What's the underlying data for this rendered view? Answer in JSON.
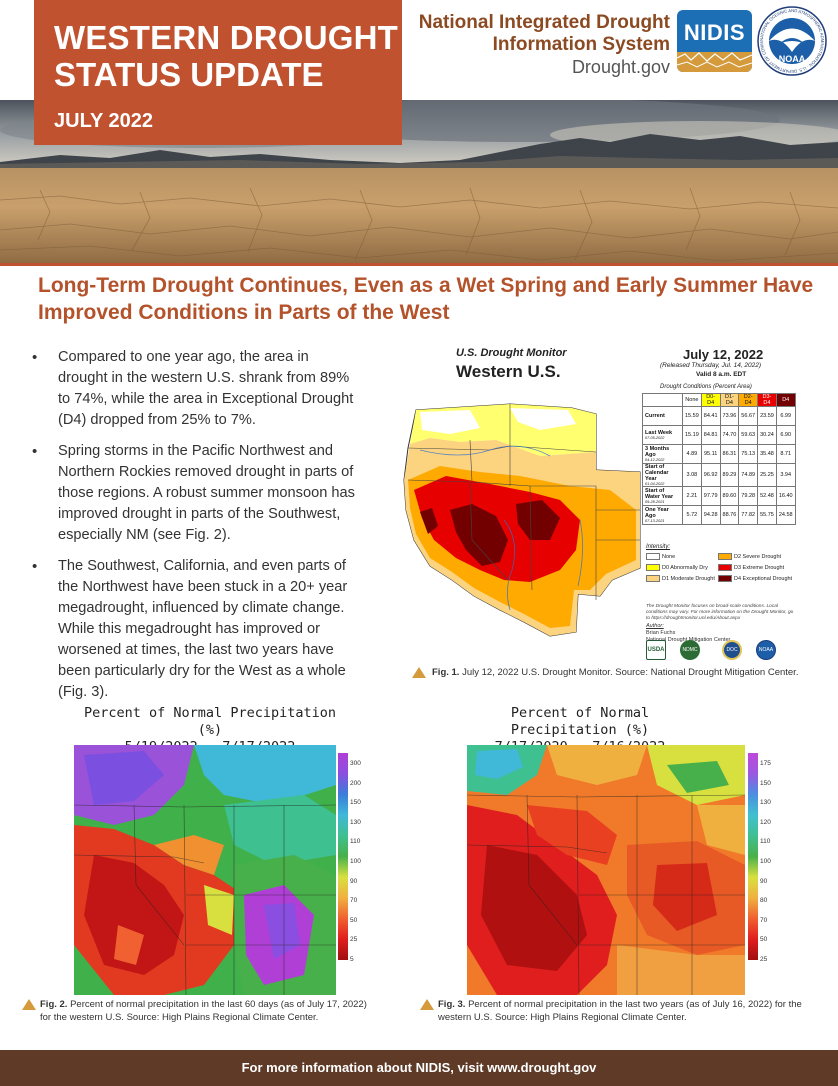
{
  "header": {
    "title_line1": "WESTERN DROUGHT",
    "title_line2": "STATUS UPDATE",
    "date": "JULY 2022",
    "org_line1": "National Integrated Drought",
    "org_line2": "Information System",
    "org_site": "Drought.gov",
    "nidis_logo_text": "NIDIS",
    "noaa_logo_text": "NOAA",
    "noaa_logo_ring": "NATIONAL OCEANIC AND ATMOSPHERIC ADMINISTRATION · U.S. DEPARTMENT OF COMMERCE"
  },
  "headline": "Long-Term Drought Continues, Even as a Wet Spring and Early Summer Have Improved Conditions in Parts of the West",
  "bullets": [
    "Compared to one year ago, the area in drought in the western U.S. shrank from 89% to 74%, while the area in Exceptional Drought (D4) dropped from 25% to 7%.",
    "Spring storms in the Pacific Northwest and Northern Rockies removed drought in parts of those regions. A robust summer monsoon has improved drought in parts of the Southwest, especially NM (see Fig. 2).",
    "The Southwest, California, and even parts of the Northwest have been stuck in a 20+ year megadrought, influenced by climate change. While this megadrought has improved or worsened at times, the last two years have been particularly dry for the West as a whole (Fig. 3)."
  ],
  "fig1": {
    "map_source": "U.S. Drought Monitor",
    "map_region": "Western U.S.",
    "map_date": "July 12, 2022",
    "released": "(Released Thursday, Jul. 14, 2022)",
    "valid": "Valid 8 a.m. EDT",
    "conditions_title": "Drought Conditions (Percent Area)",
    "table_headers": [
      "None",
      "D0-D4",
      "D1-D4",
      "D2-D4",
      "D3-D4",
      "D4"
    ],
    "table_header_colors": [
      "#ffffff",
      "#ffff00",
      "#fcd37f",
      "#ffaa00",
      "#e60000",
      "#730000"
    ],
    "table_rows": [
      {
        "label": "Current",
        "sub": "",
        "values": [
          "15.59",
          "84.41",
          "73.96",
          "56.67",
          "23.59",
          "6.99"
        ]
      },
      {
        "label": "Last Week",
        "sub": "07-05-2022",
        "values": [
          "15.19",
          "84.81",
          "74.70",
          "59.63",
          "30.24",
          "6.90"
        ]
      },
      {
        "label": "3 Months Ago",
        "sub": "04-12-2022",
        "values": [
          "4.89",
          "95.11",
          "86.31",
          "75.13",
          "35.48",
          "8.71"
        ]
      },
      {
        "label": "Start of Calendar Year",
        "sub": "01-04-2022",
        "values": [
          "3.08",
          "96.92",
          "89.29",
          "74.89",
          "25.25",
          "3.94"
        ]
      },
      {
        "label": "Start of Water Year",
        "sub": "09-28-2021",
        "values": [
          "2.21",
          "97.79",
          "89.60",
          "79.28",
          "52.48",
          "16.40"
        ]
      },
      {
        "label": "One Year Ago",
        "sub": "07-13-2021",
        "values": [
          "5.72",
          "94.28",
          "88.76",
          "77.82",
          "55.75",
          "24.58"
        ]
      }
    ],
    "intensity_label": "Intensity:",
    "legend": [
      {
        "label": "None",
        "color": "#ffffff"
      },
      {
        "label": "D0 Abnormally Dry",
        "color": "#ffff00"
      },
      {
        "label": "D1 Moderate Drought",
        "color": "#fcd37f"
      },
      {
        "label": "D2 Severe Drought",
        "color": "#ffaa00"
      },
      {
        "label": "D3 Extreme Drought",
        "color": "#e60000"
      },
      {
        "label": "D4 Exceptional Drought",
        "color": "#730000"
      }
    ],
    "note": "The Drought Monitor focuses on broad-scale conditions. Local conditions may vary. For more information on the Drought Monitor, go to https://droughtmonitor.unl.edu/About.aspx",
    "author_label": "Author:",
    "author_name": "Brian Fuchs",
    "author_org": "National Drought Mitigation Center",
    "partner_labels": [
      "USDA",
      "NDMC",
      "DOC",
      "NOAA"
    ],
    "caption_bold": "Fig. 1.",
    "caption_text": " July 12, 2022 U.S. Drought Monitor. Source: National Drought Mitigation Center."
  },
  "fig2": {
    "title_line1": "Percent of Normal Precipitation (%)",
    "title_line2": "5/19/2022 – 7/17/2022",
    "scale": [
      "300",
      "200",
      "150",
      "130",
      "110",
      "100",
      "90",
      "70",
      "50",
      "25",
      "5"
    ],
    "scale_colors": [
      "#b03fd6",
      "#8a4fe0",
      "#3a7ddb",
      "#40b8d8",
      "#3fc090",
      "#48b04a",
      "#d8e040",
      "#f0b040",
      "#f06030",
      "#e01e1e",
      "#a01010"
    ],
    "caption_bold": "Fig. 2.",
    "caption_text": " Percent of normal precipitation in the last 60 days (as of July 17, 2022) for the western U.S. Source: High Plains Regional Climate Center."
  },
  "fig3": {
    "title_line1": "Percent of Normal Precipitation (%)",
    "title_line2": "7/17/2020 – 7/16/2022",
    "scale": [
      "175",
      "150",
      "130",
      "120",
      "110",
      "100",
      "90",
      "80",
      "70",
      "50",
      "25"
    ],
    "scale_colors": [
      "#c048d8",
      "#9a58e0",
      "#4a8fe0",
      "#40c0d0",
      "#3fc090",
      "#48b04a",
      "#d8e040",
      "#f0b040",
      "#f06030",
      "#e01e1e",
      "#a01010"
    ],
    "caption_bold": "Fig. 3.",
    "caption_text": " Percent of normal precipitation in the last two years (as of July 16, 2022) for the western U.S. Source: High Plains Regional Climate Center."
  },
  "footer": "For more information about NIDIS, visit www.drought.gov"
}
